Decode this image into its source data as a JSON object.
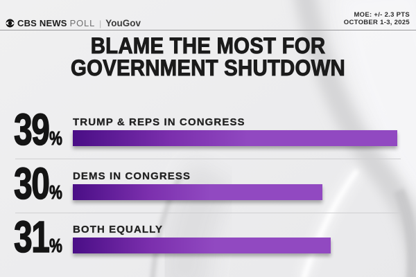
{
  "header": {
    "brand": {
      "cbs": "CBS NEWS",
      "poll": "POLL",
      "sep": "|",
      "partner": "YouGov"
    },
    "moe_line1": "MOE: +/- 2.3 PTS",
    "moe_line2": "OCTOBER 1-3, 2025"
  },
  "title": {
    "line1": "BLAME THE MOST FOR",
    "line2": "GOVERNMENT SHUTDOWN"
  },
  "chart_data": {
    "type": "bar",
    "orientation": "horizontal",
    "title": "BLAME THE MOST FOR GOVERNMENT SHUTDOWN",
    "categories": [
      "TRUMP & REPS IN CONGRESS",
      "DEMS IN CONGRESS",
      "BOTH EQUALLY"
    ],
    "values": [
      39,
      30,
      31
    ],
    "unit": "%",
    "source": "CBS NEWS POLL | YouGov",
    "moe": "+/- 2.3 PTS",
    "dates": "OCTOBER 1-3, 2025",
    "bar_color_start": "#4a0e86",
    "bar_color_end": "#9149c1"
  }
}
